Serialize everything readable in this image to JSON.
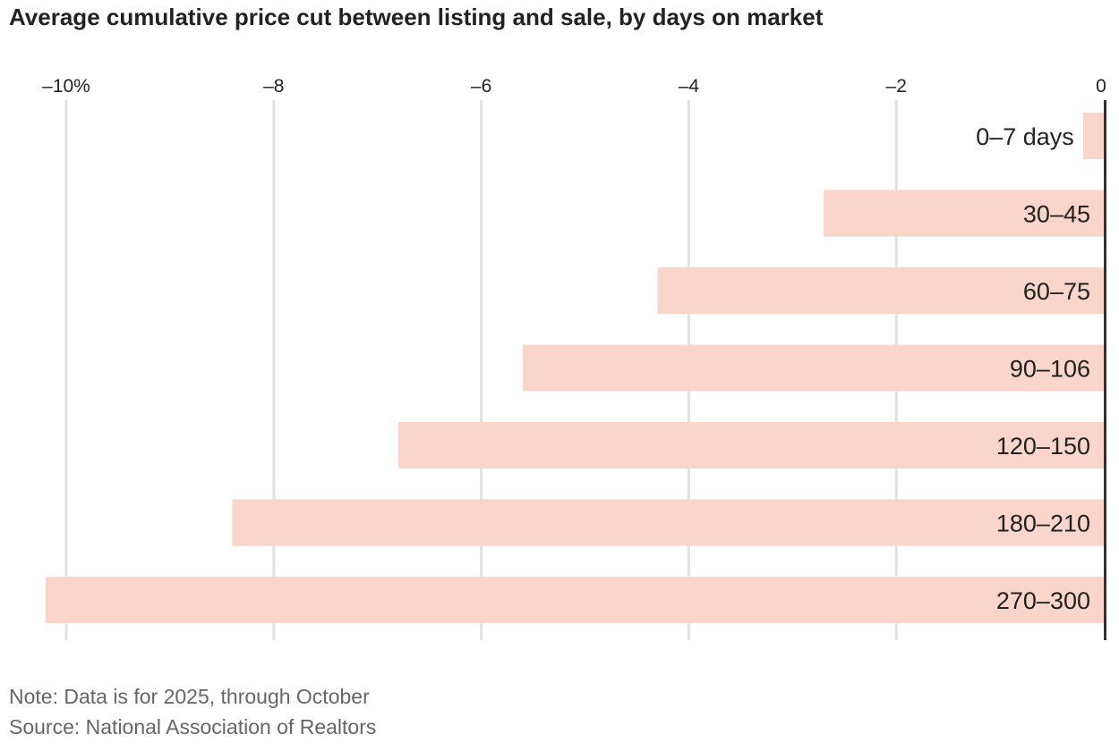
{
  "chart_data": {
    "type": "bar",
    "orientation": "horizontal",
    "title": "Average cumulative price cut between listing and sale, by days on market",
    "categories": [
      "0–7 days",
      "30–45",
      "60–75",
      "90–106",
      "120–150",
      "180–210",
      "270–300"
    ],
    "values": [
      -0.2,
      -2.7,
      -4.3,
      -5.6,
      -6.8,
      -8.4,
      -10.2
    ],
    "x_ticks": [
      -10,
      -8,
      -6,
      -4,
      -2,
      0
    ],
    "x_tick_labels": [
      "–10%",
      "–8",
      "–6",
      "–4",
      "–2",
      "0"
    ],
    "xlim": [
      -10.2,
      0
    ],
    "grid": true,
    "xlabel": "",
    "ylabel": "",
    "bar_color": "#f9d5ca",
    "gridline_color": "#e2e2e2",
    "axis_color": "#333333"
  },
  "footer": {
    "note": "Note: Data is for 2025, through October",
    "source": "Source: National Association of Realtors"
  }
}
